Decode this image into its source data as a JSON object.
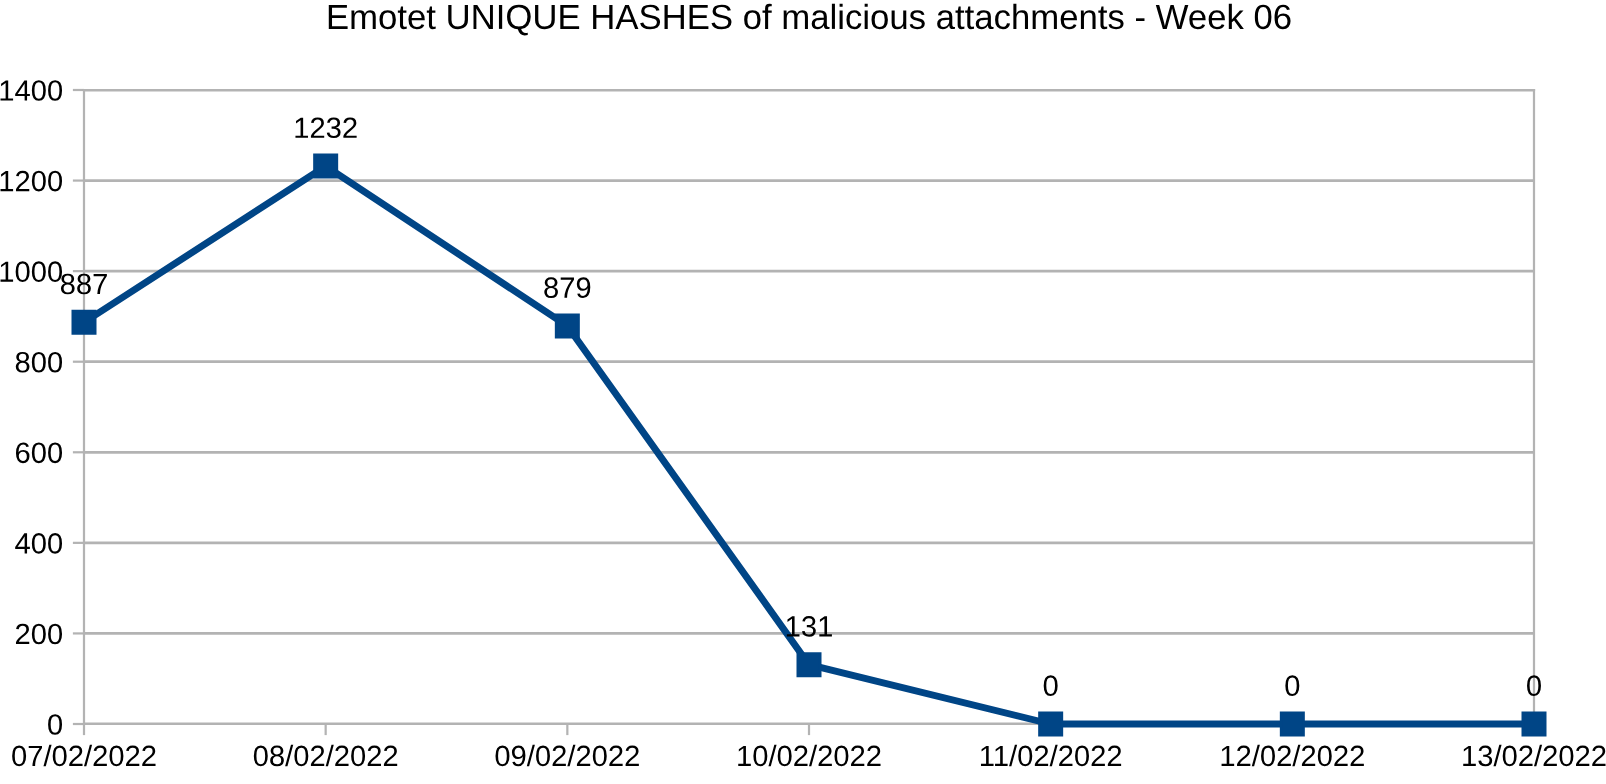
{
  "chart_data": {
    "type": "line",
    "title": "Emotet UNIQUE HASHES of malicious attachments - Week 06",
    "categories": [
      "07/02/2022",
      "08/02/2022",
      "09/02/2022",
      "10/02/2022",
      "11/02/2022",
      "12/02/2022",
      "13/02/2022"
    ],
    "series": [
      {
        "color": "#004586",
        "values": [
          887,
          1232,
          879,
          131,
          0,
          0,
          0
        ]
      }
    ],
    "ylim": [
      0,
      1400
    ],
    "yticks": [
      0,
      200,
      400,
      600,
      800,
      1000,
      1200,
      1400
    ],
    "grid": "y",
    "marker": "square",
    "line_style": "solid",
    "data_labels": true
  }
}
